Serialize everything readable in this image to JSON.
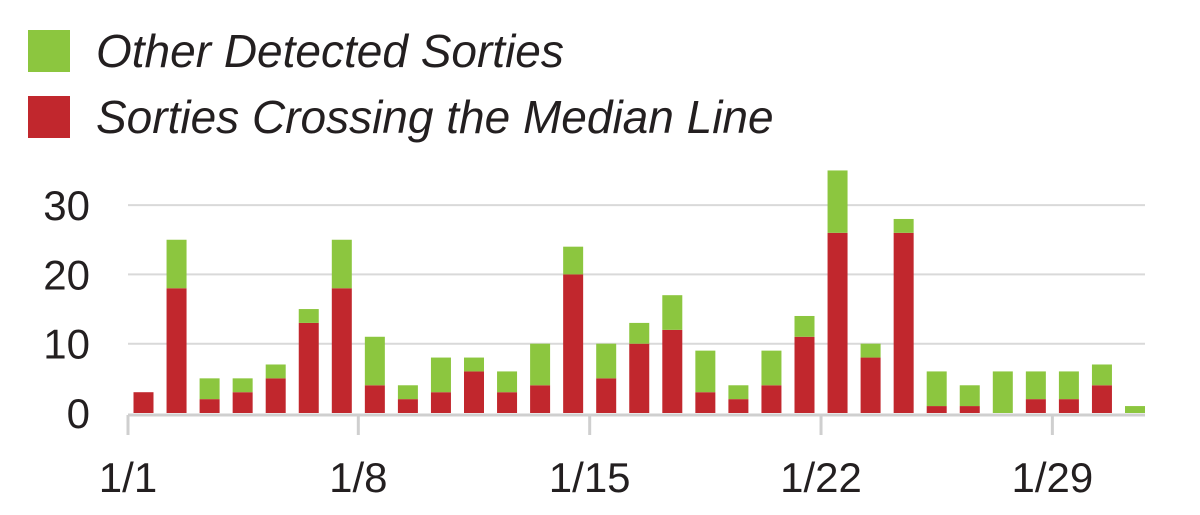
{
  "legend": {
    "items": [
      {
        "label": "Other Detected Sorties",
        "color": "#8cc63f"
      },
      {
        "label": "Sorties Crossing the Median Line",
        "color": "#c1272d"
      }
    ]
  },
  "chart_data": {
    "type": "bar",
    "stacked": true,
    "x": [
      "1/1",
      "1/2",
      "1/3",
      "1/4",
      "1/5",
      "1/6",
      "1/7",
      "1/8",
      "1/9",
      "1/10",
      "1/11",
      "1/12",
      "1/13",
      "1/14",
      "1/15",
      "1/16",
      "1/17",
      "1/18",
      "1/19",
      "1/20",
      "1/21",
      "1/22",
      "1/23",
      "1/24",
      "1/25",
      "1/26",
      "1/27",
      "1/28",
      "1/29",
      "1/30",
      "1/31"
    ],
    "x_ticks": [
      "1/1",
      "1/8",
      "1/15",
      "1/22",
      "1/29"
    ],
    "series": [
      {
        "name": "Sorties Crossing the Median Line",
        "color": "#c1272d",
        "values": [
          3,
          18,
          2,
          3,
          5,
          13,
          18,
          4,
          2,
          3,
          6,
          3,
          4,
          20,
          5,
          10,
          12,
          3,
          2,
          4,
          11,
          26,
          8,
          26,
          1,
          1,
          0,
          2,
          2,
          4,
          0
        ]
      },
      {
        "name": "Other Detected Sorties",
        "color": "#8cc63f",
        "values": [
          0,
          7,
          3,
          2,
          2,
          2,
          7,
          7,
          2,
          5,
          2,
          3,
          6,
          4,
          5,
          3,
          5,
          6,
          2,
          5,
          3,
          9,
          2,
          2,
          5,
          3,
          6,
          4,
          4,
          3,
          1
        ]
      }
    ],
    "yticks": [
      0,
      10,
      20,
      30
    ],
    "ylim": [
      0,
      36
    ],
    "grid": true,
    "legend_position": "top-left"
  }
}
